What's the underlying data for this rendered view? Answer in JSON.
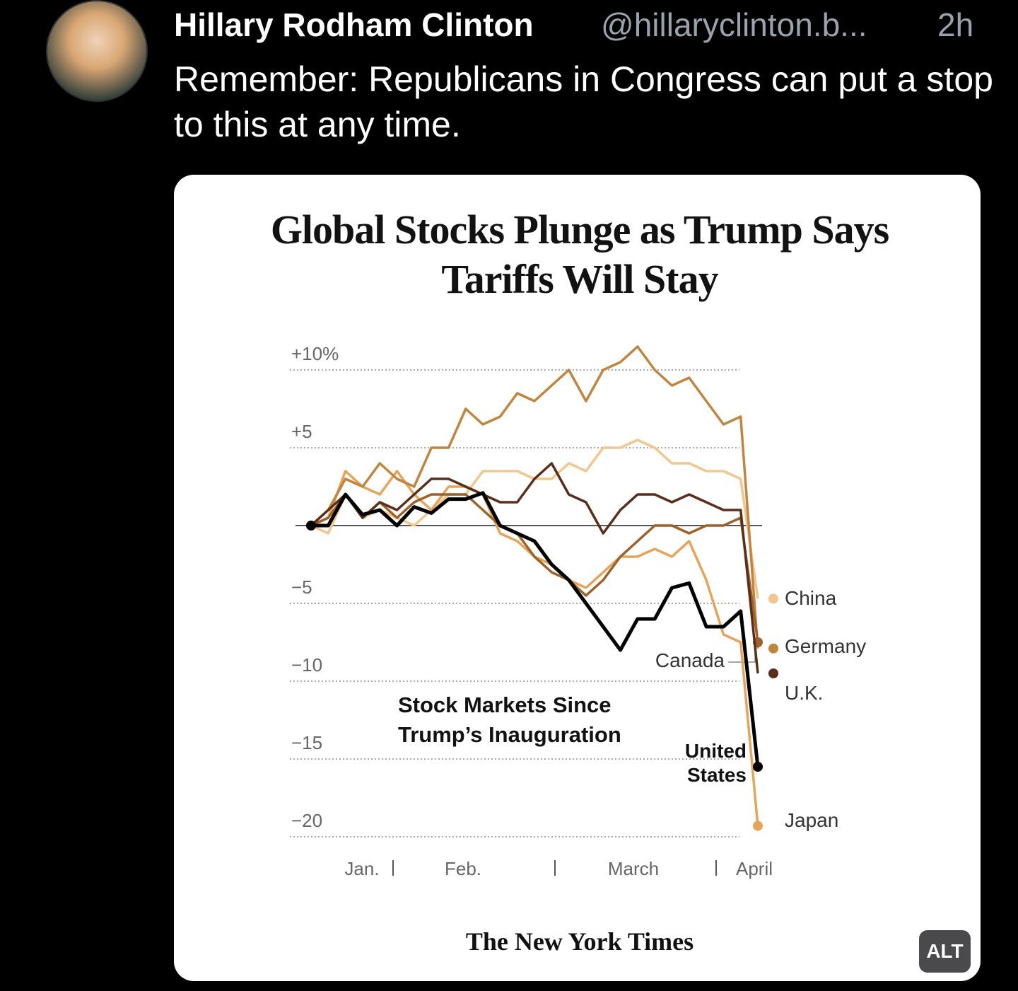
{
  "post": {
    "author": "Hillary Rodham Clinton",
    "handle": "@hillaryclinton.b...",
    "time": "2h",
    "text": "Remember: Republicans in Congress can put a stop to this at any time.",
    "badge": "ALT"
  },
  "chart_data": {
    "type": "line",
    "title": "Global Stocks Plunge as Trump Says Tariffs Will Stay",
    "subtitle": "Stock Markets Since Trump’s Inauguration",
    "source": "The New York Times",
    "months": [
      "Jan.",
      "Feb.",
      "March",
      "April"
    ],
    "ylim": [
      -21,
      12
    ],
    "yticks": [
      {
        "value": 10,
        "label": "+10%"
      },
      {
        "value": 5,
        "label": "+5"
      },
      {
        "value": -5,
        "label": "−5"
      },
      {
        "value": -10,
        "label": "−10"
      },
      {
        "value": -15,
        "label": "−15"
      },
      {
        "value": -20,
        "label": "−20"
      }
    ],
    "reference_line": 0,
    "grid": true,
    "series": [
      {
        "name": "China",
        "color": "#f1c68f",
        "values": [
          0,
          -0.5,
          2,
          0.5,
          1,
          0.5,
          0,
          1,
          2,
          2,
          3.5,
          3.5,
          3.5,
          3,
          3,
          4,
          3.5,
          5,
          5,
          5.5,
          5,
          4,
          4,
          3.5,
          3.5,
          3,
          -4.7
        ]
      },
      {
        "name": "Japan",
        "color": "#e6a45a",
        "values": [
          0,
          0.5,
          3.5,
          2.5,
          2,
          3.5,
          2,
          1,
          2.5,
          2.5,
          2,
          -0.5,
          -1,
          -2,
          -2.5,
          -3.5,
          -4,
          -3,
          -2,
          -2,
          -1.5,
          -2,
          -1,
          -3.5,
          -7,
          -7.5,
          -19.3
        ]
      },
      {
        "name": "Germany",
        "color": "#c0853f",
        "values": [
          0,
          1,
          3,
          2.5,
          4,
          3,
          2.5,
          5,
          5,
          7.5,
          6.5,
          7,
          8.5,
          8,
          9,
          10,
          8,
          10,
          10.5,
          11.5,
          10,
          9,
          9.5,
          8,
          6.5,
          7,
          -7.9
        ]
      },
      {
        "name": "Canada",
        "color": "#9c622a",
        "values": [
          0,
          0.5,
          2,
          0.5,
          1.5,
          0.5,
          1.5,
          2,
          2,
          2,
          1,
          0,
          -0.5,
          -2,
          -3,
          -3.5,
          -4.5,
          -3.5,
          -2,
          -1,
          0,
          0,
          -0.5,
          0,
          0,
          0.5,
          -7.5
        ]
      },
      {
        "name": "U.K.",
        "color": "#5a2e1a",
        "values": [
          0,
          1,
          2,
          0.5,
          1.5,
          1,
          2,
          3,
          3,
          2.5,
          2,
          1.5,
          1.5,
          3,
          4,
          2,
          1.5,
          -0.5,
          1,
          2,
          2,
          1.5,
          2,
          1.5,
          1,
          1,
          -9.5
        ]
      },
      {
        "name": "United States",
        "color": "#000000",
        "values": [
          0,
          0,
          2,
          0.7,
          1,
          0,
          1.2,
          0.8,
          1.7,
          1.7,
          2.1,
          0,
          -0.5,
          -1,
          -2.5,
          -3.5,
          -5,
          -6.5,
          -8,
          -6,
          -6,
          -4,
          -3.7,
          -6.5,
          -6.5,
          -5.5,
          -15.5
        ]
      }
    ]
  }
}
